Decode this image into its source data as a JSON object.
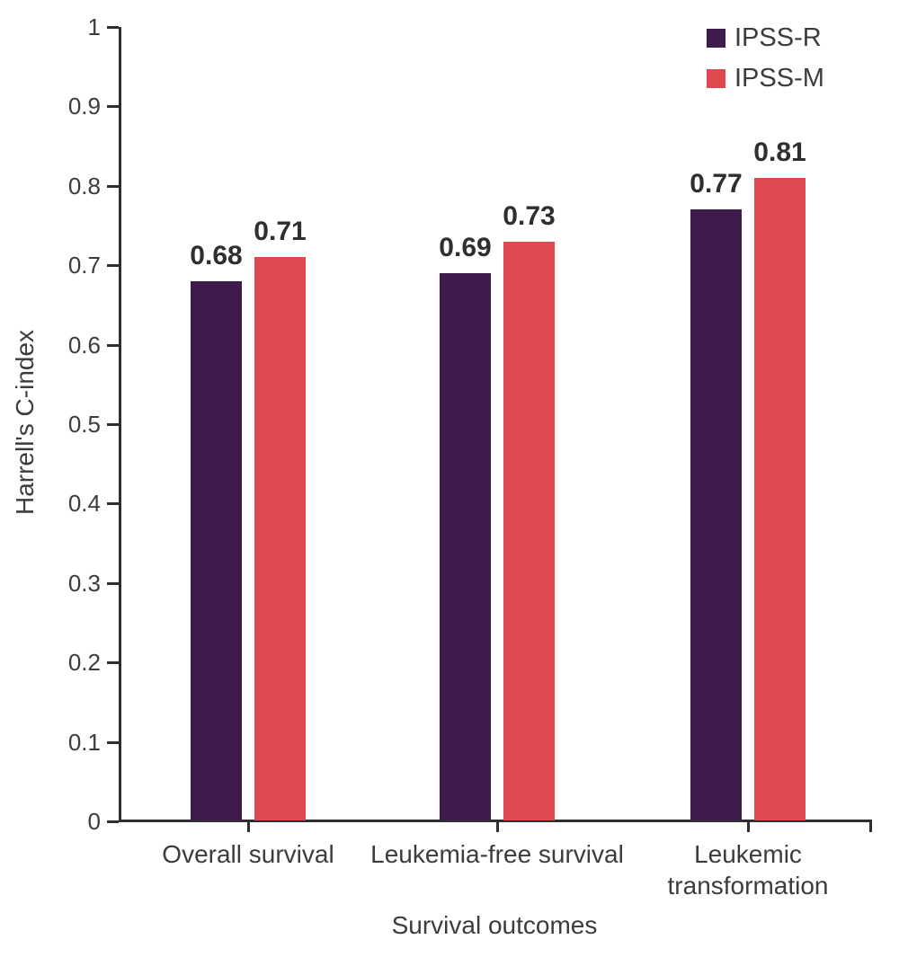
{
  "chart_data": {
    "type": "bar",
    "title": "",
    "categories": [
      "Overall survival",
      "Leukemia-free survival",
      "Leukemic\ntransformation"
    ],
    "series": [
      {
        "name": "IPSS-R",
        "color": "#3E1B4C",
        "values": [
          0.68,
          0.69,
          0.77
        ]
      },
      {
        "name": "IPSS-M",
        "color": "#DD494E",
        "values": [
          0.71,
          0.73,
          0.81
        ]
      }
    ],
    "value_labels": [
      "0.68",
      "0.71",
      "0.69",
      "0.73",
      "0.77",
      "0.81"
    ],
    "xlabel": "Survival outcomes",
    "ylabel": "Harrell's C-index",
    "ylim": [
      0,
      1
    ],
    "yticks": [
      {
        "value": 0,
        "label": "0"
      },
      {
        "value": 0.1,
        "label": "0.1"
      },
      {
        "value": 0.2,
        "label": "0.2"
      },
      {
        "value": 0.3,
        "label": "0.3"
      },
      {
        "value": 0.4,
        "label": "0.4"
      },
      {
        "value": 0.5,
        "label": "0.5"
      },
      {
        "value": 0.6,
        "label": "0.6"
      },
      {
        "value": 0.7,
        "label": "0.7"
      },
      {
        "value": 0.8,
        "label": "0.8"
      },
      {
        "value": 0.9,
        "label": "0.9"
      },
      {
        "value": 1,
        "label": "1"
      }
    ],
    "grid": false,
    "legend_position": "top-right",
    "colors": {
      "axis": "#2F2F2F",
      "text": "#3C3C3C",
      "value_label": "#2F2F2F",
      "background": "#FFFFFF"
    }
  }
}
